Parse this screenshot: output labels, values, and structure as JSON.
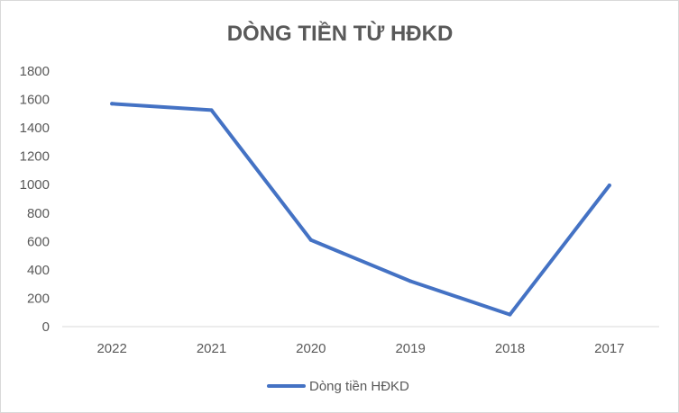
{
  "chart_data": {
    "type": "line",
    "title": "DÒNG TIỀN TỪ HĐKD",
    "xlabel": "",
    "ylabel": "",
    "categories": [
      "2022",
      "2021",
      "2020",
      "2019",
      "2018",
      "2017"
    ],
    "series": [
      {
        "name": "Dòng tiền HĐKD",
        "values": [
          1570,
          1525,
          610,
          320,
          85,
          995
        ],
        "color": "#4472c4"
      }
    ],
    "ylim": [
      0,
      1800
    ],
    "yticks": [
      "0",
      "200",
      "400",
      "600",
      "800",
      "1000",
      "1200",
      "1400",
      "1600",
      "1800"
    ],
    "grid": false,
    "legend_position": "bottom"
  }
}
